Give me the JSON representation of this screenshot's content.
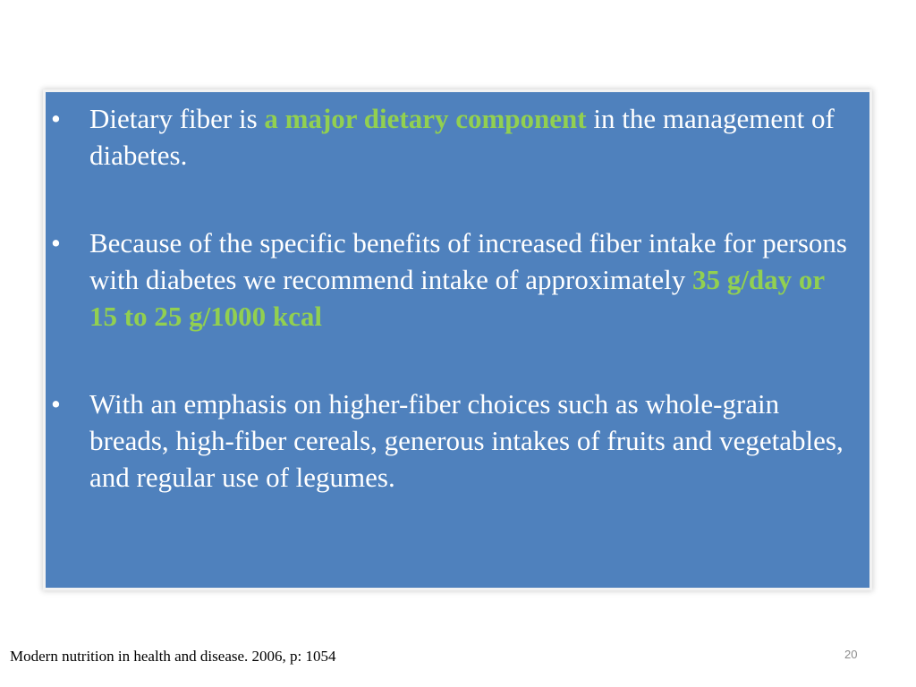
{
  "slide": {
    "bullets": [
      {
        "pre": "Dietary fiber is ",
        "highlight": "a major dietary component",
        "post": " in the management of diabetes."
      },
      {
        "pre": "Because of the specific benefits of increased fiber intake for persons with diabetes we recommend intake of approximately ",
        "highlight": "35 g/day or 15 to 25 g/1000 kcal",
        "post": ""
      },
      {
        "pre": "With an emphasis on higher-fiber choices such as whole-grain breads, high-fiber cereals, generous intakes of fruits and vegetables, and regular use of legumes.",
        "highlight": "",
        "post": ""
      }
    ],
    "bullet_symbol": "•",
    "citation": "Modern nutrition in health and disease. 2006, p: 1054",
    "page_number": "20"
  },
  "colors": {
    "box_background": "#4f81bd",
    "text": "#ffffff",
    "highlight": "#92d050",
    "page_number": "#8c8c8c"
  }
}
